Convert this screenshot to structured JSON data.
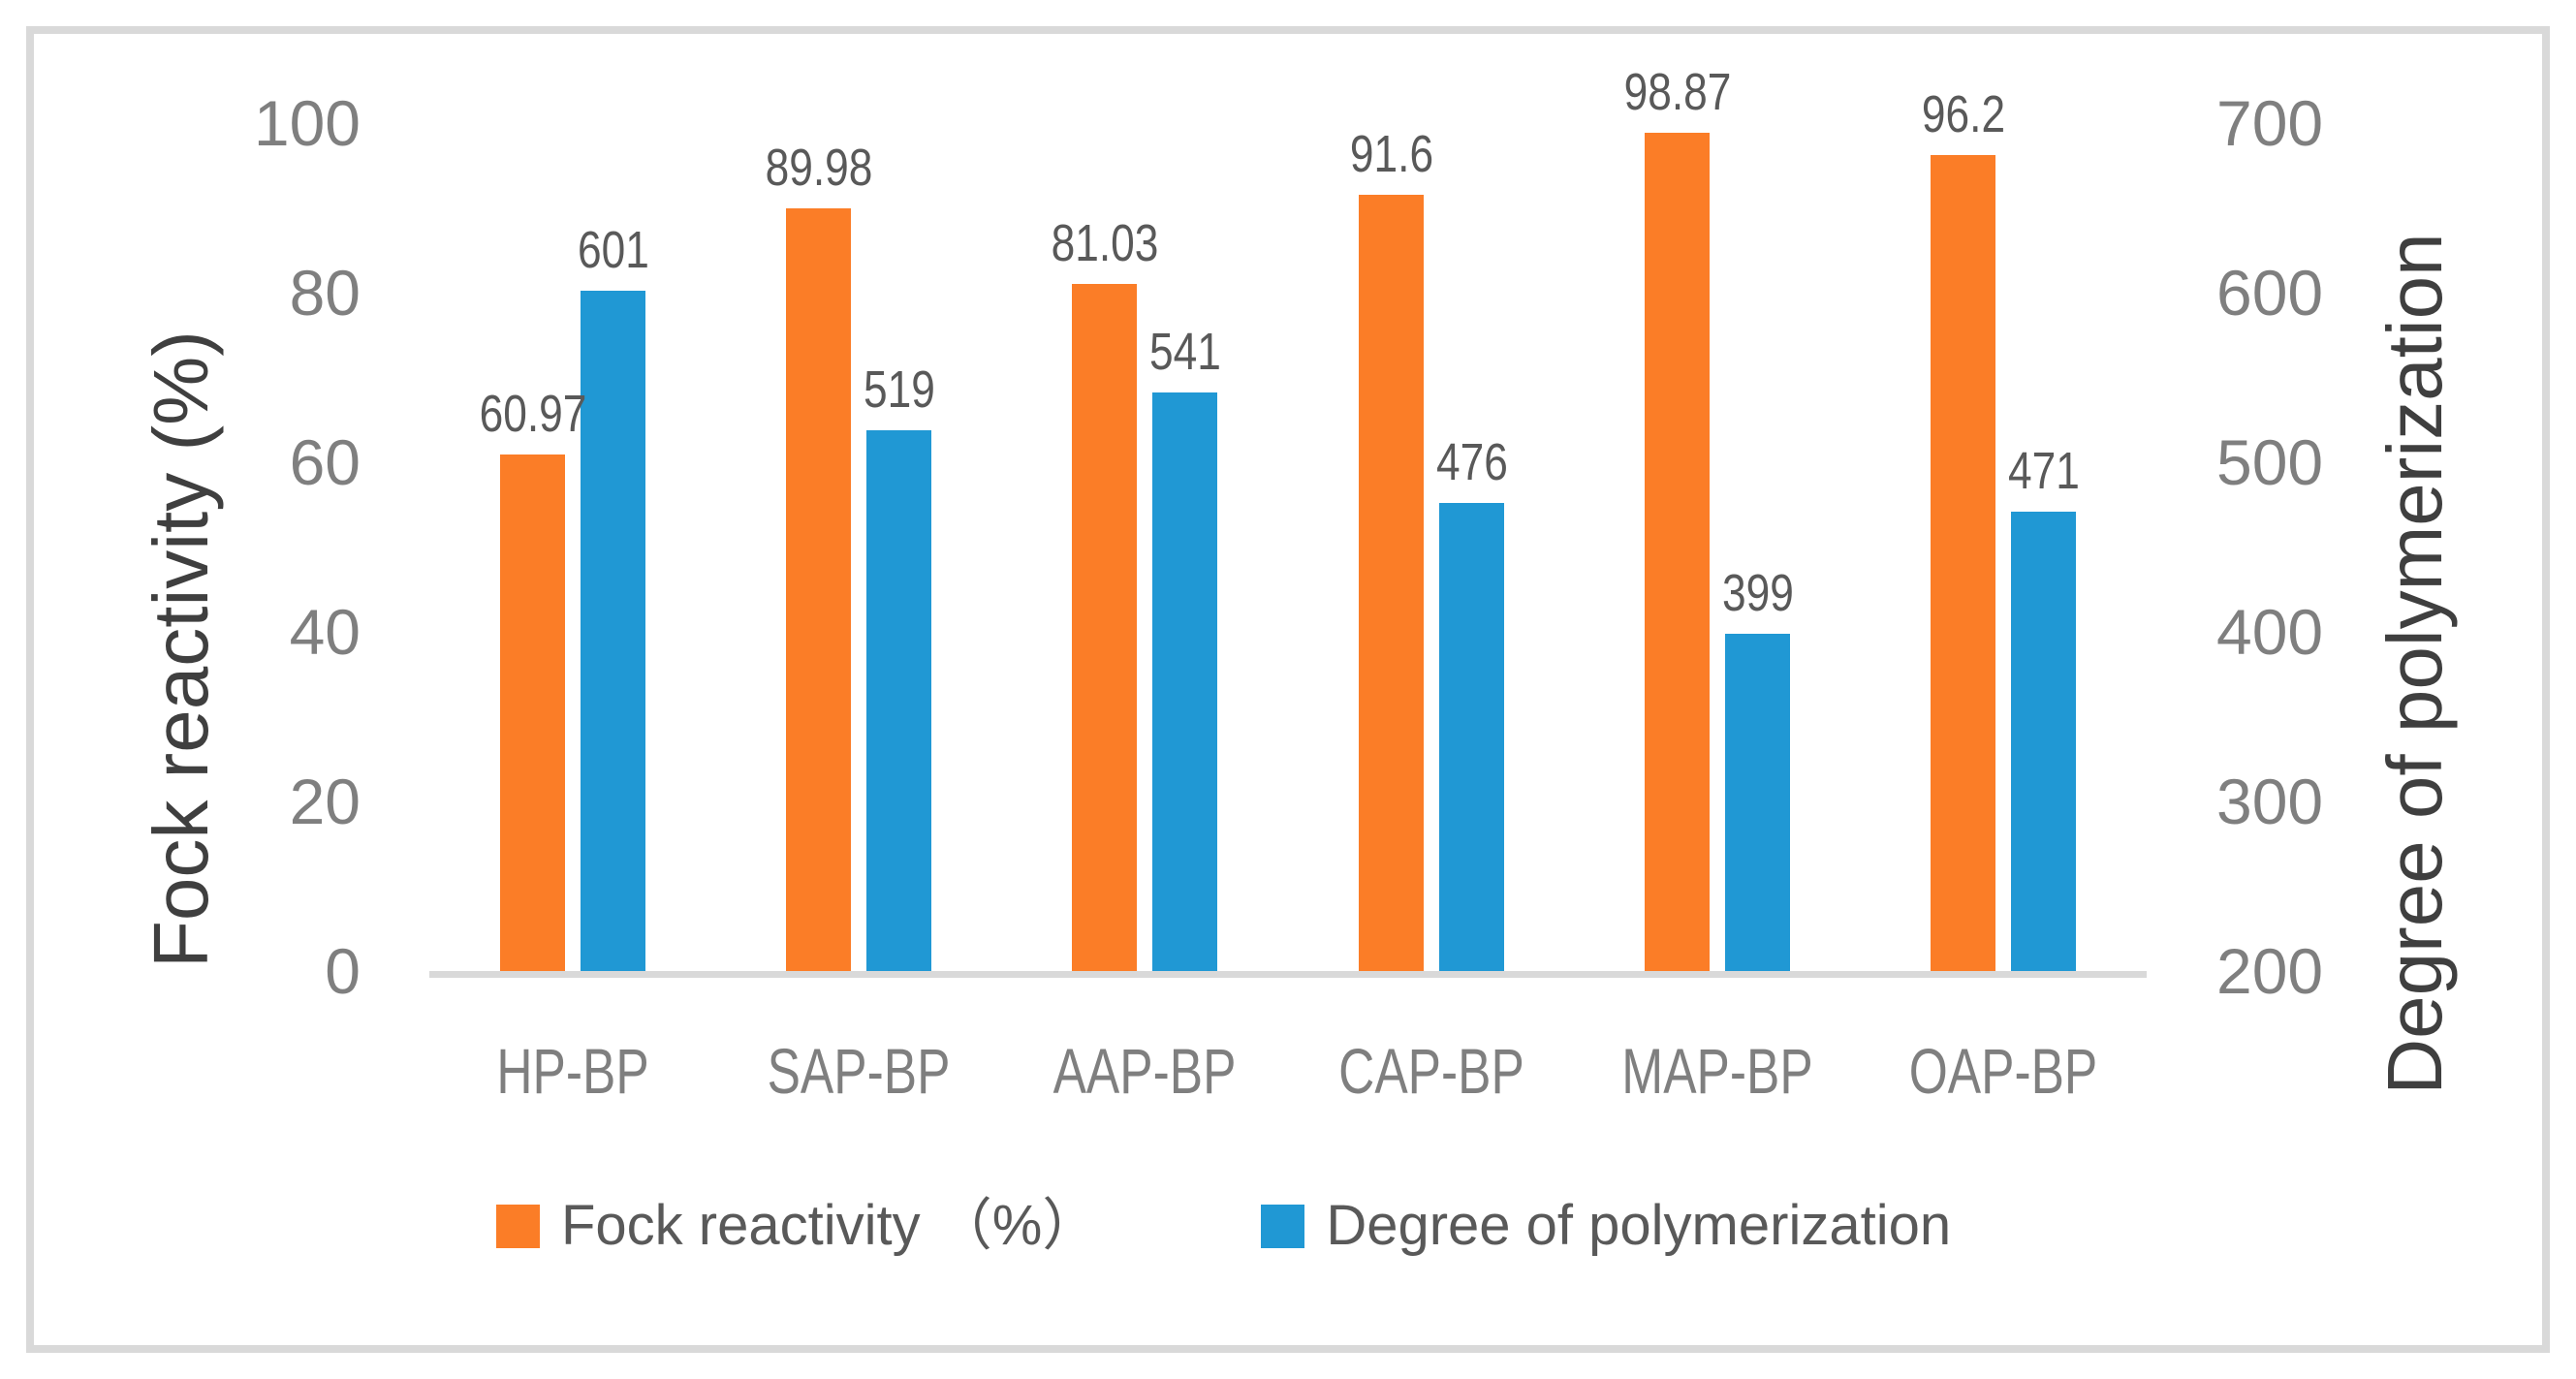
{
  "chart_data": {
    "type": "bar",
    "title": "",
    "categories": [
      "HP-BP",
      "SAP-BP",
      "AAP-BP",
      "CAP-BP",
      "MAP-BP",
      "OAP-BP"
    ],
    "series": [
      {
        "name": "Fock reactivity （%）",
        "axis": "left",
        "color": "#FB7D27",
        "values": [
          60.97,
          89.98,
          81.03,
          91.6,
          98.87,
          96.2
        ],
        "data_labels": [
          "60.97",
          "89.98",
          "81.03",
          "91.6",
          "98.87",
          "96.2"
        ]
      },
      {
        "name": "Degree of polymerization",
        "axis": "right",
        "color": "#2098D4",
        "values": [
          601,
          519,
          541,
          476,
          399,
          471
        ],
        "data_labels": [
          "601",
          "519",
          "541",
          "476",
          "399",
          "471"
        ]
      }
    ],
    "left_axis": {
      "label": "Fock reactivity (%)",
      "min": 0,
      "max": 100,
      "ticks": [
        0,
        20,
        40,
        60,
        80,
        100
      ]
    },
    "right_axis": {
      "label": "Degree of polymerization",
      "min": 200,
      "max": 700,
      "ticks": [
        200,
        300,
        400,
        500,
        600,
        700
      ]
    },
    "legend_position": "bottom",
    "grid": false
  },
  "colors": {
    "fock_bar": "#FB7D27",
    "dp_bar": "#2098D4",
    "axis_line": "#D9D9D9",
    "frame_border": "#D9D9D9",
    "tick_text": "#7F7F7F",
    "category_text": "#7F7F7F",
    "data_label_text": "#595959",
    "axis_title_text": "#3F3F3F",
    "legend_text": "#595959",
    "background": "#FFFFFF"
  }
}
